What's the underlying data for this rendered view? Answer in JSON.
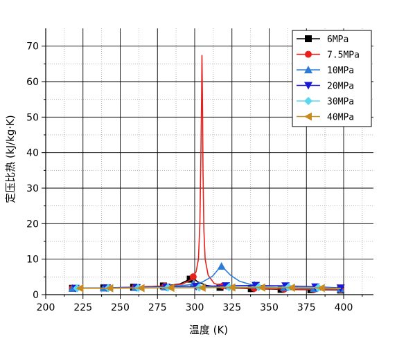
{
  "chart_data": {
    "type": "line",
    "title": "",
    "xlabel": "温度 (K)",
    "ylabel": "定压比热 (kJ/kg·K)",
    "xlim": [
      200,
      420
    ],
    "ylim": [
      0,
      75
    ],
    "xticks": [
      200,
      225,
      250,
      275,
      300,
      325,
      350,
      375,
      400
    ],
    "yticks": [
      0,
      10,
      20,
      30,
      40,
      50,
      60,
      70
    ],
    "grid": true,
    "legend_position": "top-right",
    "series": [
      {
        "name": "6MPa",
        "color": "#000000",
        "marker": "square",
        "points": [
          [
            218,
            1.8
          ],
          [
            240,
            1.9
          ],
          [
            260,
            2.1
          ],
          [
            278,
            2.4
          ],
          [
            290,
            3.0
          ],
          [
            296,
            4.2
          ],
          [
            299,
            4.7
          ],
          [
            302,
            3.6
          ],
          [
            308,
            2.6
          ],
          [
            318,
            2.0
          ],
          [
            338,
            1.7
          ],
          [
            358,
            1.5
          ],
          [
            378,
            1.4
          ],
          [
            398,
            1.3
          ]
        ],
        "marker_x": [
          218,
          239,
          259,
          279,
          297,
          317,
          338,
          358,
          378,
          398
        ]
      },
      {
        "name": "7.5MPa",
        "color": "#e8201c",
        "marker": "circle",
        "points": [
          [
            218,
            1.8
          ],
          [
            240,
            1.9
          ],
          [
            260,
            2.1
          ],
          [
            280,
            2.4
          ],
          [
            292,
            3.0
          ],
          [
            298,
            4.3
          ],
          [
            301,
            6.5
          ],
          [
            302.5,
            10
          ],
          [
            303.5,
            20
          ],
          [
            304.2,
            40
          ],
          [
            304.6,
            55
          ],
          [
            304.9,
            67.5
          ],
          [
            305.2,
            55
          ],
          [
            305.6,
            35
          ],
          [
            306.2,
            18
          ],
          [
            307,
            10
          ],
          [
            309,
            5.5
          ],
          [
            313,
            3.2
          ],
          [
            318,
            2.5
          ],
          [
            330,
            1.9
          ],
          [
            345,
            1.7
          ],
          [
            360,
            1.55
          ],
          [
            380,
            1.45
          ],
          [
            398,
            1.4
          ]
        ],
        "marker_x": [
          218,
          240,
          260,
          280,
          299,
          319,
          340,
          360,
          380,
          398
        ]
      },
      {
        "name": "10MPa",
        "color": "#2c7bd6",
        "marker": "triangle-up",
        "points": [
          [
            218,
            1.8
          ],
          [
            240,
            1.9
          ],
          [
            260,
            2.0
          ],
          [
            280,
            2.2
          ],
          [
            295,
            2.7
          ],
          [
            305,
            3.5
          ],
          [
            312,
            5.2
          ],
          [
            316,
            7.2
          ],
          [
            318,
            8.0
          ],
          [
            320,
            7.2
          ],
          [
            324,
            5.5
          ],
          [
            330,
            3.8
          ],
          [
            338,
            2.8
          ],
          [
            350,
            2.2
          ],
          [
            365,
            1.9
          ],
          [
            380,
            1.7
          ],
          [
            398,
            1.6
          ]
        ],
        "marker_x": [
          218,
          239,
          260,
          280,
          299,
          318,
          340,
          360,
          380,
          398
        ]
      },
      {
        "name": "20MPa",
        "color": "#1a1ad6",
        "marker": "triangle-down",
        "points": [
          [
            218,
            1.8
          ],
          [
            240,
            1.9
          ],
          [
            260,
            2.0
          ],
          [
            280,
            2.1
          ],
          [
            300,
            2.3
          ],
          [
            320,
            2.5
          ],
          [
            340,
            2.6
          ],
          [
            360,
            2.5
          ],
          [
            380,
            2.2
          ],
          [
            398,
            1.9
          ]
        ],
        "marker_x": [
          220,
          241,
          261,
          281,
          301,
          321,
          341,
          361,
          381,
          398
        ]
      },
      {
        "name": "30MPa",
        "color": "#5ad8f0",
        "marker": "diamond",
        "points": [
          [
            220,
            1.8
          ],
          [
            240,
            1.85
          ],
          [
            260,
            1.9
          ],
          [
            280,
            2.0
          ],
          [
            300,
            2.05
          ],
          [
            320,
            2.1
          ],
          [
            340,
            2.15
          ],
          [
            360,
            2.1
          ],
          [
            380,
            2.0
          ],
          [
            398,
            1.8
          ]
        ],
        "marker_x": [
          221,
          242,
          262,
          282,
          303,
          323,
          343,
          363,
          383
        ]
      },
      {
        "name": "40MPa",
        "color": "#c98a1e",
        "marker": "triangle-left",
        "points": [
          [
            222,
            1.8
          ],
          [
            242,
            1.8
          ],
          [
            262,
            1.85
          ],
          [
            282,
            1.9
          ],
          [
            302,
            1.95
          ],
          [
            322,
            2.0
          ],
          [
            342,
            2.0
          ],
          [
            362,
            1.95
          ],
          [
            382,
            1.9
          ],
          [
            398,
            1.7
          ]
        ],
        "marker_x": [
          223,
          243,
          264,
          284,
          305,
          325,
          345,
          365,
          385
        ]
      }
    ]
  }
}
